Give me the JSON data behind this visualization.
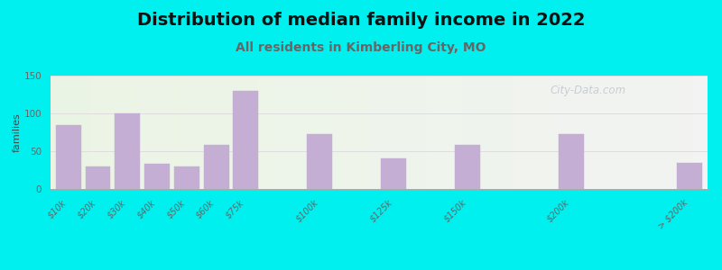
{
  "title": "Distribution of median family income in 2022",
  "subtitle": "All residents in Kimberling City, MO",
  "ylabel": "families",
  "categories": [
    "$10k",
    "$20k",
    "$30k",
    "$40k",
    "$50k",
    "$60k",
    "$75k",
    "$100k",
    "$125k",
    "$150k",
    "$200k",
    "> $200k"
  ],
  "values": [
    85,
    30,
    100,
    33,
    30,
    58,
    130,
    73,
    40,
    58,
    73,
    35
  ],
  "bar_color": "#c4aed4",
  "bar_edgecolor": "#c4aed4",
  "bg_color": "#00efef",
  "ylim": [
    0,
    150
  ],
  "yticks": [
    0,
    50,
    100,
    150
  ],
  "title_fontsize": 14,
  "subtitle_fontsize": 10,
  "ylabel_fontsize": 8,
  "tick_fontsize": 7,
  "watermark": "City-Data.com",
  "subtitle_color": "#666666",
  "title_color": "#111111",
  "grid_color": "#dddddd",
  "tick_color": "#666666"
}
